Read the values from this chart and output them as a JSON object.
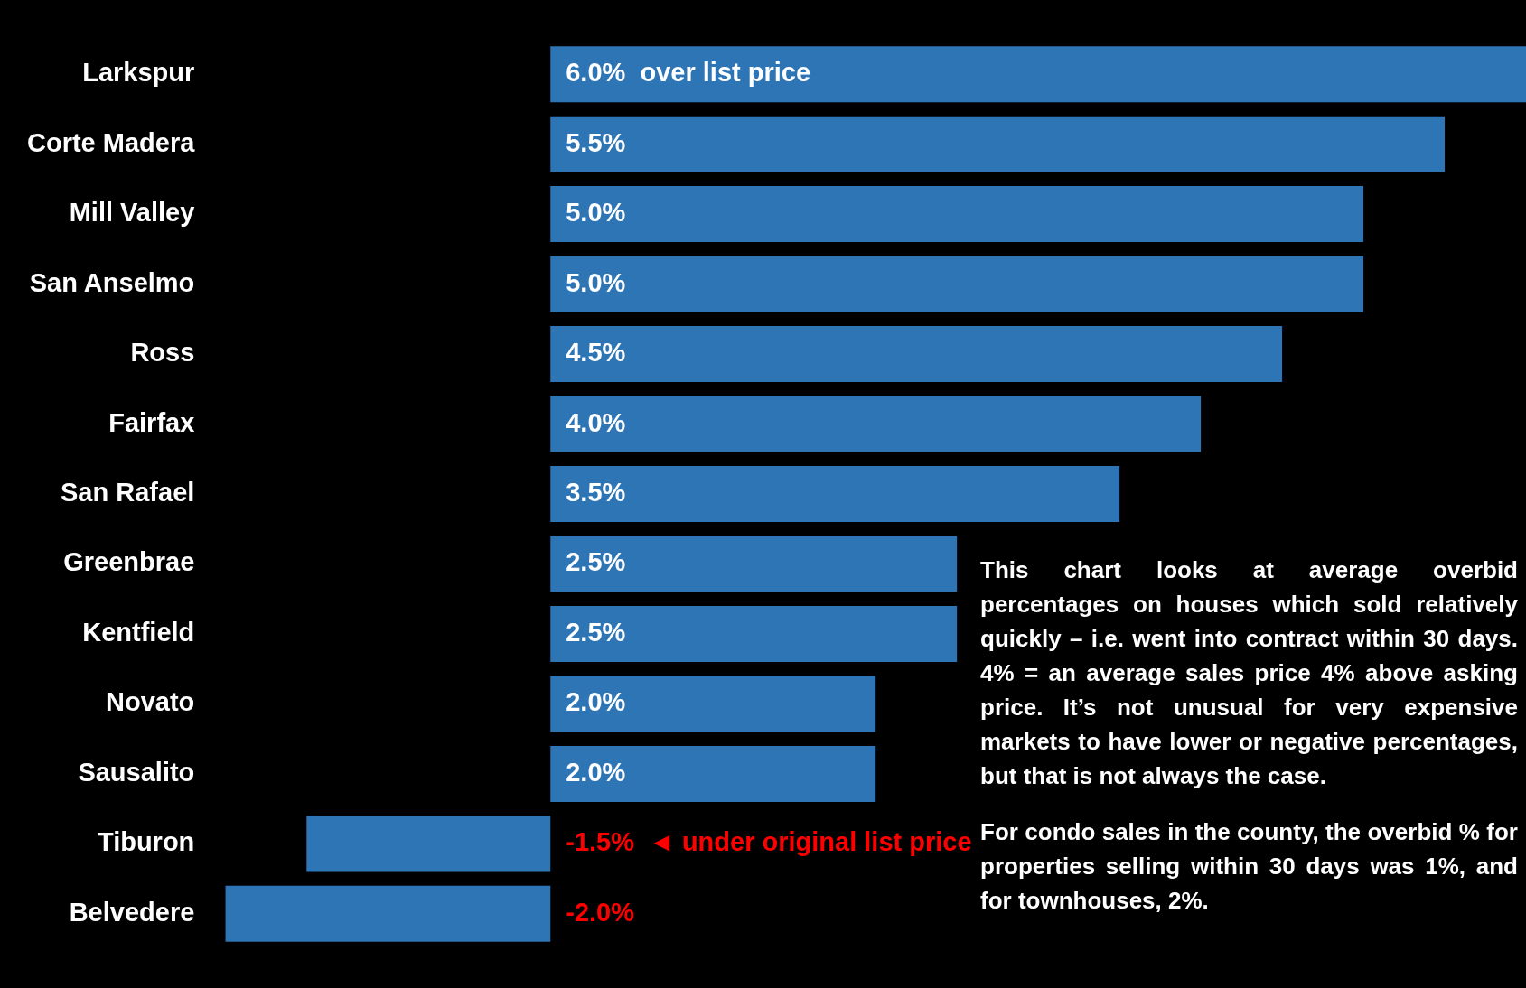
{
  "chart_data": {
    "type": "bar",
    "orientation": "horizontal",
    "categories": [
      "Larkspur",
      "Corte Madera",
      "Mill Valley",
      "San Anselmo",
      "Ross",
      "Fairfax",
      "San Rafael",
      "Greenbrae",
      "Kentfield",
      "Novato",
      "Sausalito",
      "Tiburon",
      "Belvedere"
    ],
    "values": [
      6.0,
      5.5,
      5.0,
      5.0,
      4.5,
      4.0,
      3.5,
      2.5,
      2.5,
      2.0,
      2.0,
      -1.5,
      -2.0
    ],
    "value_labels": [
      "6.0%  over list price",
      "5.5%",
      "5.0%",
      "5.0%",
      "4.5%",
      "4.0%",
      "3.5%",
      "2.5%",
      "2.5%",
      "2.0%",
      "2.0%",
      "-1.5%  ◄ under original list price",
      "-2.0%"
    ],
    "color": "#2e75b6",
    "annotations": [
      "This chart looks at average overbid percentages on houses which sold relatively quickly – i.e. went into contract within 30 days. 4% = an average sales price 4% above asking price. It’s not unusual for very expensive markets to have lower or negative percentages, but that is not always the case.",
      "For condo sales in the county, the overbid % for properties selling within 30 days was 1%, and for townhouses, 2%."
    ],
    "grid": false,
    "legend": false,
    "tick_labels": "y"
  }
}
